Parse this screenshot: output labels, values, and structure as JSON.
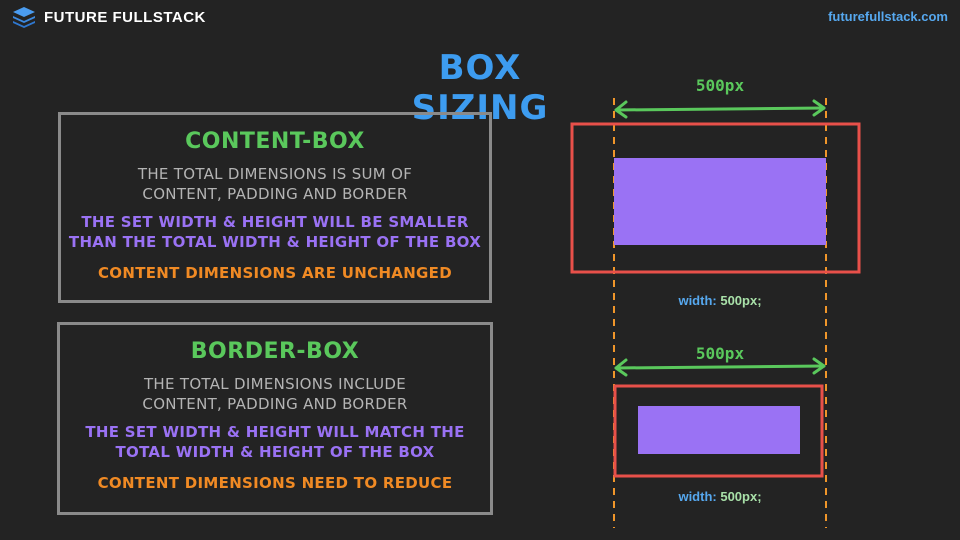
{
  "header": {
    "brand": "FUTURE FULLSTACK",
    "url": "futurefullstack.com"
  },
  "title": "BOX SIZING",
  "content_box": {
    "heading": "CONTENT-BOX",
    "desc_line1": "THE TOTAL DIMENSIONS IS SUM OF",
    "desc_line2": "CONTENT, PADDING AND BORDER",
    "purple_line1": "THE SET WIDTH & HEIGHT WILL BE SMALLER",
    "purple_line2": "THAN THE TOTAL WIDTH & HEIGHT OF THE BOX",
    "note": "CONTENT DIMENSIONS ARE UNCHANGED"
  },
  "border_box": {
    "heading": "BORDER-BOX",
    "desc_line1": "THE TOTAL DIMENSIONS INCLUDE",
    "desc_line2": "CONTENT, PADDING AND BORDER",
    "purple_line1": "THE SET WIDTH & HEIGHT WILL MATCH THE",
    "purple_line2": "TOTAL WIDTH & HEIGHT OF THE BOX",
    "note": "CONTENT DIMENSIONS NEED TO REDUCE"
  },
  "diagram": {
    "top_dimension": "500px",
    "bottom_dimension": "500px",
    "top_code_prop": "width:",
    "top_code_value": "500px;",
    "bottom_code_prop": "width:",
    "bottom_code_value": "500px;"
  },
  "colors": {
    "background": "#232323",
    "title_blue": "#3d9cf0",
    "heading_green": "#5ac85c",
    "purple": "#9a72f4",
    "orange": "#f08a24",
    "border_red": "#e8504a",
    "guide_orange": "#f0962a"
  }
}
